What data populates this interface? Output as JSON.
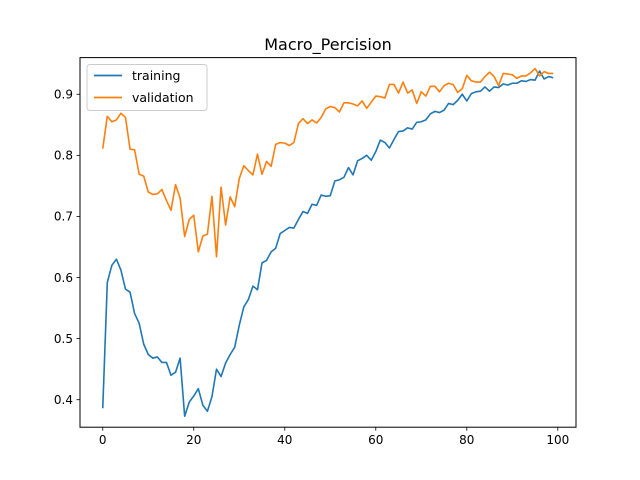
{
  "chart_data": {
    "type": "line",
    "title": "Macro_Percision",
    "xlabel": "",
    "ylabel": "",
    "xlim": [
      -5,
      104
    ],
    "ylim": [
      0.355,
      0.96
    ],
    "x_ticks": [
      0,
      20,
      40,
      60,
      80,
      100
    ],
    "y_ticks": [
      0.4,
      0.5,
      0.6,
      0.7,
      0.8,
      0.9
    ],
    "grid": false,
    "legend_position": "top-left",
    "x": [
      0,
      1,
      2,
      3,
      4,
      5,
      6,
      7,
      8,
      9,
      10,
      11,
      12,
      13,
      14,
      15,
      16,
      17,
      18,
      19,
      20,
      21,
      22,
      23,
      24,
      25,
      26,
      27,
      28,
      29,
      30,
      31,
      32,
      33,
      34,
      35,
      36,
      37,
      38,
      39,
      40,
      41,
      42,
      43,
      44,
      45,
      46,
      47,
      48,
      49,
      50,
      51,
      52,
      53,
      54,
      55,
      56,
      57,
      58,
      59,
      60,
      61,
      62,
      63,
      64,
      65,
      66,
      67,
      68,
      69,
      70,
      71,
      72,
      73,
      74,
      75,
      76,
      77,
      78,
      79,
      80,
      81,
      82,
      83,
      84,
      85,
      86,
      87,
      88,
      89,
      90,
      91,
      92,
      93,
      94,
      95,
      96,
      97,
      98,
      99
    ],
    "series": [
      {
        "name": "training",
        "color": "#1f77b4",
        "values": [
          0.386,
          0.592,
          0.62,
          0.63,
          0.612,
          0.581,
          0.576,
          0.541,
          0.525,
          0.491,
          0.474,
          0.468,
          0.47,
          0.461,
          0.461,
          0.44,
          0.445,
          0.468,
          0.373,
          0.396,
          0.406,
          0.418,
          0.391,
          0.381,
          0.405,
          0.45,
          0.438,
          0.46,
          0.474,
          0.486,
          0.522,
          0.552,
          0.564,
          0.586,
          0.58,
          0.624,
          0.628,
          0.642,
          0.648,
          0.672,
          0.677,
          0.682,
          0.681,
          0.695,
          0.708,
          0.705,
          0.72,
          0.718,
          0.735,
          0.733,
          0.734,
          0.758,
          0.76,
          0.764,
          0.78,
          0.768,
          0.791,
          0.795,
          0.8,
          0.792,
          0.806,
          0.825,
          0.821,
          0.812,
          0.826,
          0.839,
          0.84,
          0.845,
          0.843,
          0.854,
          0.855,
          0.858,
          0.868,
          0.872,
          0.87,
          0.874,
          0.885,
          0.883,
          0.89,
          0.9,
          0.889,
          0.901,
          0.904,
          0.905,
          0.912,
          0.905,
          0.912,
          0.911,
          0.917,
          0.915,
          0.918,
          0.918,
          0.922,
          0.921,
          0.924,
          0.923,
          0.938,
          0.925,
          0.929,
          0.927
        ]
      },
      {
        "name": "validation",
        "color": "#ff7f0e",
        "values": [
          0.811,
          0.864,
          0.855,
          0.858,
          0.869,
          0.862,
          0.81,
          0.809,
          0.769,
          0.766,
          0.74,
          0.736,
          0.737,
          0.744,
          0.726,
          0.71,
          0.752,
          0.73,
          0.667,
          0.695,
          0.702,
          0.642,
          0.668,
          0.671,
          0.733,
          0.634,
          0.748,
          0.686,
          0.732,
          0.716,
          0.762,
          0.783,
          0.775,
          0.768,
          0.802,
          0.769,
          0.79,
          0.782,
          0.818,
          0.821,
          0.82,
          0.816,
          0.821,
          0.852,
          0.86,
          0.852,
          0.858,
          0.853,
          0.862,
          0.876,
          0.88,
          0.878,
          0.871,
          0.886,
          0.886,
          0.884,
          0.881,
          0.889,
          0.877,
          0.887,
          0.897,
          0.896,
          0.894,
          0.916,
          0.916,
          0.902,
          0.92,
          0.902,
          0.907,
          0.885,
          0.904,
          0.897,
          0.913,
          0.913,
          0.904,
          0.914,
          0.918,
          0.916,
          0.903,
          0.909,
          0.931,
          0.922,
          0.92,
          0.92,
          0.929,
          0.936,
          0.929,
          0.914,
          0.934,
          0.933,
          0.932,
          0.926,
          0.93,
          0.93,
          0.935,
          0.942,
          0.93,
          0.937,
          0.934,
          0.934
        ]
      }
    ]
  }
}
